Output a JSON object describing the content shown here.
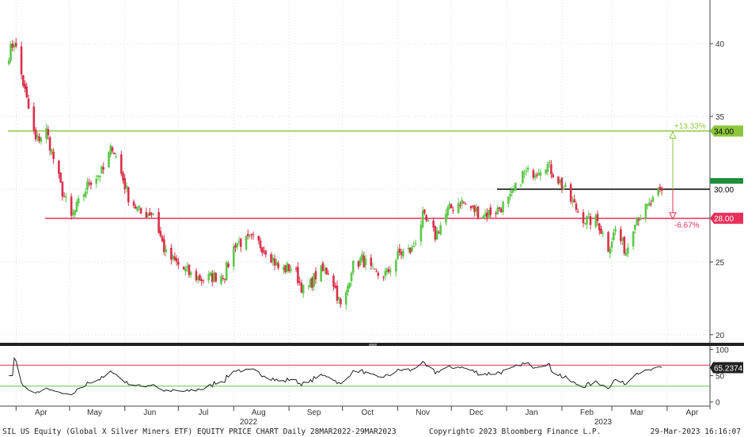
{
  "chart_data": {
    "type": "candlestick",
    "ticker": "SIL",
    "price_axis": {
      "ylim": [
        19.5,
        43
      ],
      "ticks": [
        20,
        25,
        30,
        35,
        40
      ]
    },
    "rsi_axis": {
      "ylim": [
        -5,
        105
      ],
      "ticks": [
        0,
        50,
        100
      ]
    },
    "x_axis": {
      "months": [
        "Apr",
        "May",
        "Jun",
        "Jul",
        "Aug",
        "Sep",
        "Oct",
        "Nov",
        "Dec",
        "Jan",
        "Feb",
        "Mar",
        "Apr"
      ],
      "years": [
        "2022",
        "2023"
      ]
    },
    "horizontal_levels": [
      {
        "label": "34.00",
        "value": 34.0,
        "color": "#8cc63e"
      },
      {
        "label": "30.00",
        "value": 30.0,
        "color": "#000000"
      },
      {
        "label": "28.00",
        "value": 28.0,
        "color": "#e8305a"
      }
    ],
    "annotations": [
      {
        "text": "+13.33%",
        "color": "#8cc63e",
        "from": 30.0,
        "to": 34.0
      },
      {
        "text": "-6.67%",
        "color": "#e8305a",
        "from": 30.0,
        "to": 28.0
      }
    ],
    "rsi": {
      "last_label": "65.2374",
      "upper_band": 70,
      "lower_band": 30,
      "upper_color": "#e8305a",
      "lower_color": "#5cc84a"
    },
    "anchors": [
      [
        "2022-03-28",
        39.3
      ],
      [
        "2022-03-31",
        40.2
      ],
      [
        "2022-04-08",
        35.5
      ],
      [
        "2022-04-12",
        33.3
      ],
      [
        "2022-04-18",
        34.0
      ],
      [
        "2022-04-26",
        30.2
      ],
      [
        "2022-05-02",
        28.0
      ],
      [
        "2022-05-12",
        30.5
      ],
      [
        "2022-05-20",
        31.3
      ],
      [
        "2022-05-25",
        33.0
      ],
      [
        "2022-06-03",
        29.5
      ],
      [
        "2022-06-10",
        28.3
      ],
      [
        "2022-06-17",
        28.4
      ],
      [
        "2022-06-24",
        25.5
      ],
      [
        "2022-07-08",
        24.1
      ],
      [
        "2022-07-15",
        23.8
      ],
      [
        "2022-07-27",
        24.2
      ],
      [
        "2022-08-02",
        26.3
      ],
      [
        "2022-08-12",
        26.5
      ],
      [
        "2022-08-20",
        25.8
      ],
      [
        "2022-08-27",
        24.4
      ],
      [
        "2022-09-03",
        24.7
      ],
      [
        "2022-09-10",
        22.8
      ],
      [
        "2022-09-17",
        24.3
      ],
      [
        "2022-09-24",
        24.4
      ],
      [
        "2022-10-01",
        21.5
      ],
      [
        "2022-10-06",
        24.6
      ],
      [
        "2022-10-12",
        25.2
      ],
      [
        "2022-10-19",
        24.1
      ],
      [
        "2022-10-26",
        24.2
      ],
      [
        "2022-11-02",
        25.6
      ],
      [
        "2022-11-09",
        25.8
      ],
      [
        "2022-11-15",
        28.1
      ],
      [
        "2022-11-22",
        26.8
      ],
      [
        "2022-11-29",
        28.5
      ],
      [
        "2022-12-06",
        29.2
      ],
      [
        "2022-12-13",
        28.6
      ],
      [
        "2022-12-20",
        28.3
      ],
      [
        "2022-12-27",
        28.6
      ],
      [
        "2023-01-03",
        29.3
      ],
      [
        "2023-01-10",
        31.0
      ],
      [
        "2023-01-16",
        31.2
      ],
      [
        "2023-01-23",
        31.8
      ],
      [
        "2023-01-31",
        30.5
      ],
      [
        "2023-02-07",
        29.0
      ],
      [
        "2023-02-14",
        27.9
      ],
      [
        "2023-02-21",
        27.8
      ],
      [
        "2023-02-27",
        26.0
      ],
      [
        "2023-03-03",
        27.2
      ],
      [
        "2023-03-09",
        25.7
      ],
      [
        "2023-03-14",
        28.0
      ],
      [
        "2023-03-21",
        28.7
      ],
      [
        "2023-03-29",
        29.9
      ]
    ]
  },
  "footer": {
    "left": "SIL US Equity (Global X Silver Miners ETF) EQUITY PRICE CHART  Daily 28MAR2022-29MAR2023",
    "center": "Copyright© 2023 Bloomberg Finance L.P.",
    "right": "29-Mar-2023 16:16:07"
  },
  "colors": {
    "up_candle": "#5cc84a",
    "down_candle": "#d9304a",
    "rsi_line": "#222222",
    "grid": "#d0d0d0",
    "separator": "#222222"
  }
}
